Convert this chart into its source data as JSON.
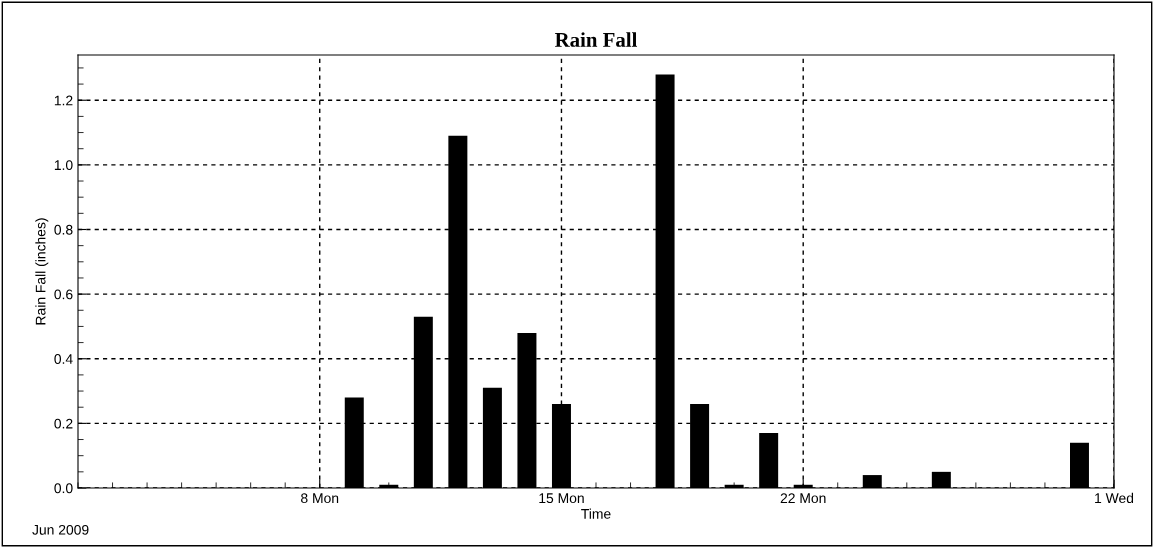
{
  "chart_data": {
    "type": "bar",
    "title": "Rain Fall",
    "xlabel": "Time",
    "ylabel": "Rain Fall (inches)",
    "x": [
      "2009-06-09",
      "2009-06-10",
      "2009-06-11",
      "2009-06-12",
      "2009-06-13",
      "2009-06-14",
      "2009-06-15",
      "2009-06-18",
      "2009-06-19",
      "2009-06-20",
      "2009-06-21",
      "2009-06-22",
      "2009-06-24",
      "2009-06-26",
      "2009-06-30"
    ],
    "values": [
      0.28,
      0.01,
      0.53,
      1.09,
      0.31,
      0.48,
      0.26,
      1.28,
      0.26,
      0.01,
      0.17,
      0.01,
      0.04,
      0.05,
      0.14
    ],
    "color": "#000000",
    "xlim": [
      "2009-06-01",
      "2009-07-01"
    ],
    "xticks": [
      {
        "value": "2009-06-08",
        "label": "8 Mon"
      },
      {
        "value": "2009-06-15",
        "label": "15 Mon"
      },
      {
        "value": "2009-06-22",
        "label": "22 Mon"
      },
      {
        "value": "2009-07-01",
        "label": "1 Wed"
      }
    ],
    "ylim": [
      0,
      1.34
    ],
    "yticks": [
      {
        "value": 0,
        "label": "0.0"
      },
      {
        "value": 0.2,
        "label": "0.2"
      },
      {
        "value": 0.4,
        "label": "0.4"
      },
      {
        "value": 0.6,
        "label": "0.6"
      },
      {
        "value": 0.8,
        "label": "0.8"
      },
      {
        "value": 1.0,
        "label": "1.0"
      },
      {
        "value": 1.2,
        "label": "1.2"
      }
    ],
    "grid": true,
    "annotations": [
      "Jun 2009"
    ]
  }
}
